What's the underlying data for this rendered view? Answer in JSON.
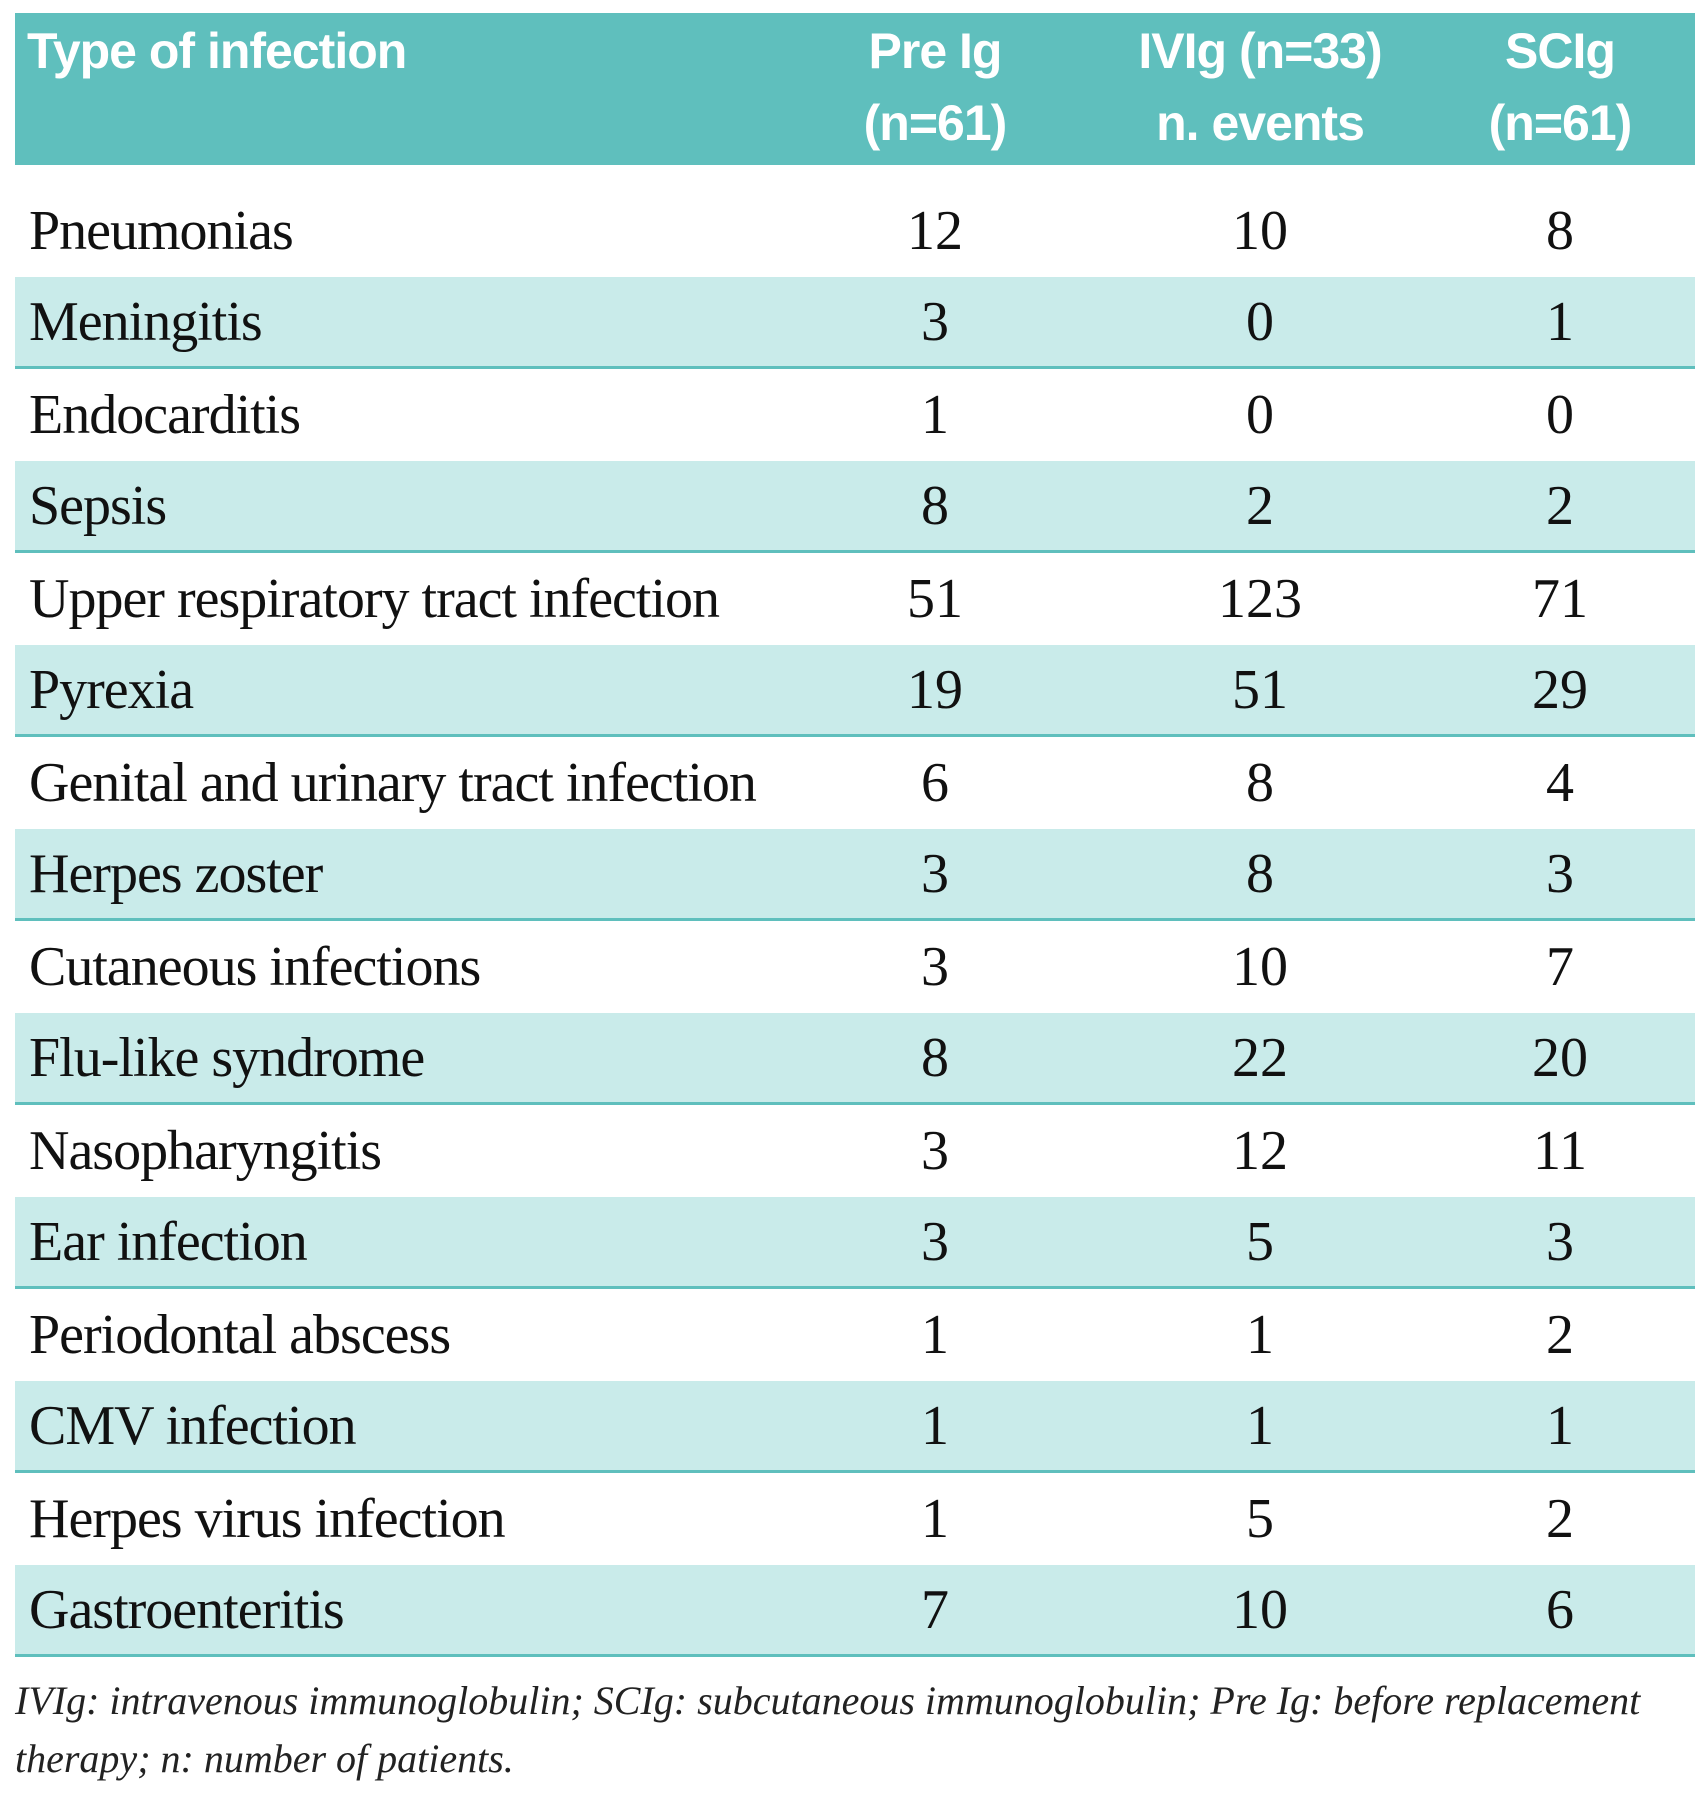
{
  "table": {
    "columns": {
      "type_label": "Type of infection",
      "pre_line1": "Pre Ig",
      "pre_line2": "(n=61)",
      "ivig_line1": "IVIg (n=33)",
      "ivig_line2": "n. events",
      "scig_line1": "SCIg",
      "scig_line2": "(n=61)"
    },
    "rows": [
      {
        "type": "Pneumonias",
        "pre": "12",
        "ivig": "10",
        "scig": "8"
      },
      {
        "type": "Meningitis",
        "pre": "3",
        "ivig": "0",
        "scig": "1"
      },
      {
        "type": "Endocarditis",
        "pre": "1",
        "ivig": "0",
        "scig": "0"
      },
      {
        "type": "Sepsis",
        "pre": "8",
        "ivig": "2",
        "scig": "2"
      },
      {
        "type": "Upper respiratory tract infection",
        "pre": "51",
        "ivig": "123",
        "scig": "71"
      },
      {
        "type": "Pyrexia",
        "pre": "19",
        "ivig": "51",
        "scig": "29"
      },
      {
        "type": "Genital and urinary tract infection",
        "pre": "6",
        "ivig": "8",
        "scig": "4"
      },
      {
        "type": "Herpes zoster",
        "pre": "3",
        "ivig": "8",
        "scig": "3"
      },
      {
        "type": "Cutaneous infections",
        "pre": "3",
        "ivig": "10",
        "scig": "7"
      },
      {
        "type": "Flu-like syndrome",
        "pre": "8",
        "ivig": "22",
        "scig": "20"
      },
      {
        "type": "Nasopharyngitis",
        "pre": "3",
        "ivig": "12",
        "scig": "11"
      },
      {
        "type": "Ear infection",
        "pre": "3",
        "ivig": "5",
        "scig": "3"
      },
      {
        "type": "Periodontal abscess",
        "pre": "1",
        "ivig": "1",
        "scig": "2"
      },
      {
        "type": "CMV infection",
        "pre": "1",
        "ivig": "1",
        "scig": "1"
      },
      {
        "type": "Herpes virus infection",
        "pre": "1",
        "ivig": "5",
        "scig": "2"
      },
      {
        "type": "Gastroenteritis",
        "pre": "7",
        "ivig": "10",
        "scig": "6"
      }
    ]
  },
  "footnote": "IVIg: intravenous immunoglobulin; SCIg: subcutaneous immunoglobulin; Pre Ig: before replacement therapy; n: number of patients.",
  "colors": {
    "header_bg": "#5fbfbd",
    "row_shade": "#c9ebea",
    "row_rule": "#5fbfbd"
  }
}
